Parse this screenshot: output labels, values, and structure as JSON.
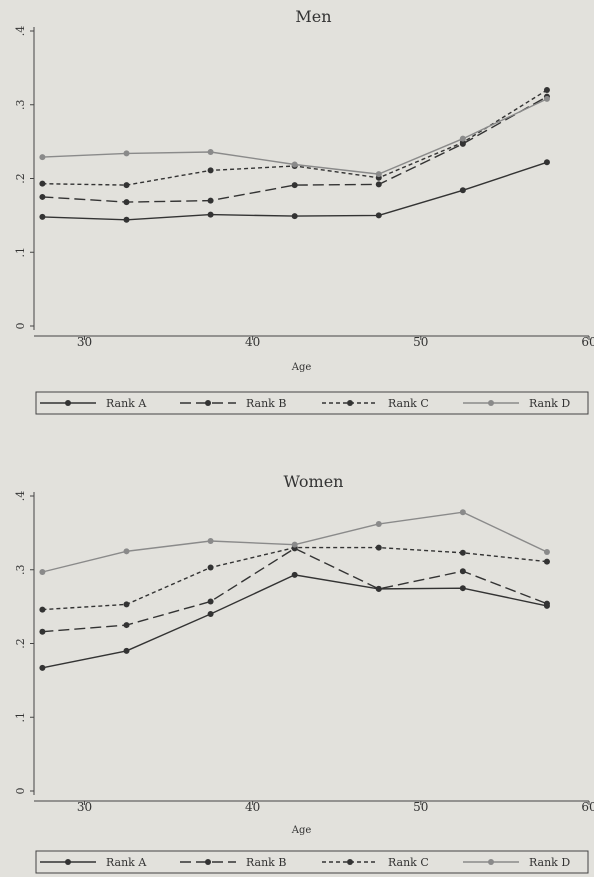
{
  "chart_data": [
    {
      "type": "line",
      "title": "Men",
      "xlabel": "Age",
      "ylabel": "",
      "xlim": [
        27,
        60
      ],
      "ylim": [
        0,
        0.4
      ],
      "xticks": [
        "30",
        "40",
        "50",
        "60"
      ],
      "yticks": [
        "0",
        ".1",
        ".2",
        ".3",
        ".4"
      ],
      "x": [
        27.5,
        32.5,
        37.5,
        42.5,
        47.5,
        52.5,
        57.5
      ],
      "grid": false,
      "legend_position": "bottom",
      "series": [
        {
          "name": "Rank A",
          "values": [
            0.148,
            0.144,
            0.151,
            0.149,
            0.15,
            0.184,
            0.222
          ],
          "color": "#333333",
          "dash": "solid"
        },
        {
          "name": "Rank B",
          "values": [
            0.175,
            0.168,
            0.17,
            0.191,
            0.192,
            0.247,
            0.311
          ],
          "color": "#333333",
          "dash": "longdash"
        },
        {
          "name": "Rank C",
          "values": [
            0.193,
            0.191,
            0.211,
            0.217,
            0.201,
            0.249,
            0.32
          ],
          "color": "#333333",
          "dash": "shortdash"
        },
        {
          "name": "Rank D",
          "values": [
            0.229,
            0.234,
            0.236,
            0.219,
            0.206,
            0.254,
            0.308
          ],
          "color": "#8a8a8a",
          "dash": "solid"
        }
      ]
    },
    {
      "type": "line",
      "title": "Women",
      "xlabel": "Age",
      "ylabel": "",
      "xlim": [
        27,
        60
      ],
      "ylim": [
        0,
        0.4
      ],
      "xticks": [
        "30",
        "40",
        "50",
        "60"
      ],
      "yticks": [
        "0",
        ".1",
        ".2",
        ".3",
        ".4"
      ],
      "x": [
        27.5,
        32.5,
        37.5,
        42.5,
        47.5,
        52.5,
        57.5
      ],
      "grid": false,
      "legend_position": "bottom",
      "series": [
        {
          "name": "Rank A",
          "values": [
            0.167,
            0.19,
            0.24,
            0.293,
            0.274,
            0.275,
            0.251
          ],
          "color": "#333333",
          "dash": "solid"
        },
        {
          "name": "Rank B",
          "values": [
            0.216,
            0.225,
            0.257,
            0.329,
            0.274,
            0.298,
            0.254
          ],
          "color": "#333333",
          "dash": "longdash"
        },
        {
          "name": "Rank C",
          "values": [
            0.246,
            0.253,
            0.303,
            0.33,
            0.33,
            0.323,
            0.311
          ],
          "color": "#333333",
          "dash": "shortdash"
        },
        {
          "name": "Rank D",
          "values": [
            0.297,
            0.325,
            0.339,
            0.334,
            0.362,
            0.378,
            0.324
          ],
          "color": "#8a8a8a",
          "dash": "solid"
        }
      ]
    }
  ]
}
